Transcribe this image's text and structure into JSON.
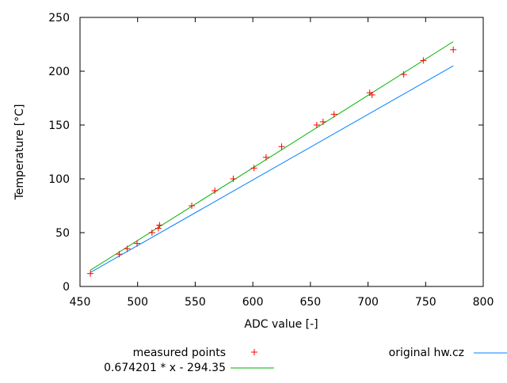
{
  "chart_data": {
    "type": "scatter",
    "title": "",
    "xlabel": "ADC value [-]",
    "ylabel": "Temperature [°C]",
    "xlim": [
      450,
      800
    ],
    "ylim": [
      0,
      250
    ],
    "xticks": [
      450,
      500,
      550,
      600,
      650,
      700,
      750,
      800
    ],
    "yticks": [
      0,
      50,
      100,
      150,
      200,
      250
    ],
    "grid": false,
    "legend_placement": "bottom",
    "series": [
      {
        "name": "measured points",
        "kind": "points",
        "marker": "+",
        "color": "#ff0000",
        "x": [
          459,
          484,
          491,
          499.5,
          512.5,
          518,
          519,
          547,
          567,
          583,
          601,
          611.5,
          625,
          655.5,
          661,
          670.5,
          701.5,
          703.5,
          731,
          748,
          774
        ],
        "y": [
          12,
          30,
          35,
          40,
          50,
          54,
          57,
          75,
          89,
          100,
          110,
          120,
          130,
          150,
          153,
          160,
          180,
          178,
          197,
          210,
          220
        ]
      },
      {
        "name": "original hw.cz",
        "kind": "line",
        "color": "#0080ff",
        "x": [
          459,
          774
        ],
        "y": [
          13,
          205
        ]
      },
      {
        "name": "0.674201 * x - 294.35",
        "kind": "function",
        "color": "#00b000",
        "slope": 0.674201,
        "intercept": -294.35,
        "x_range": [
          459,
          774
        ]
      }
    ]
  }
}
